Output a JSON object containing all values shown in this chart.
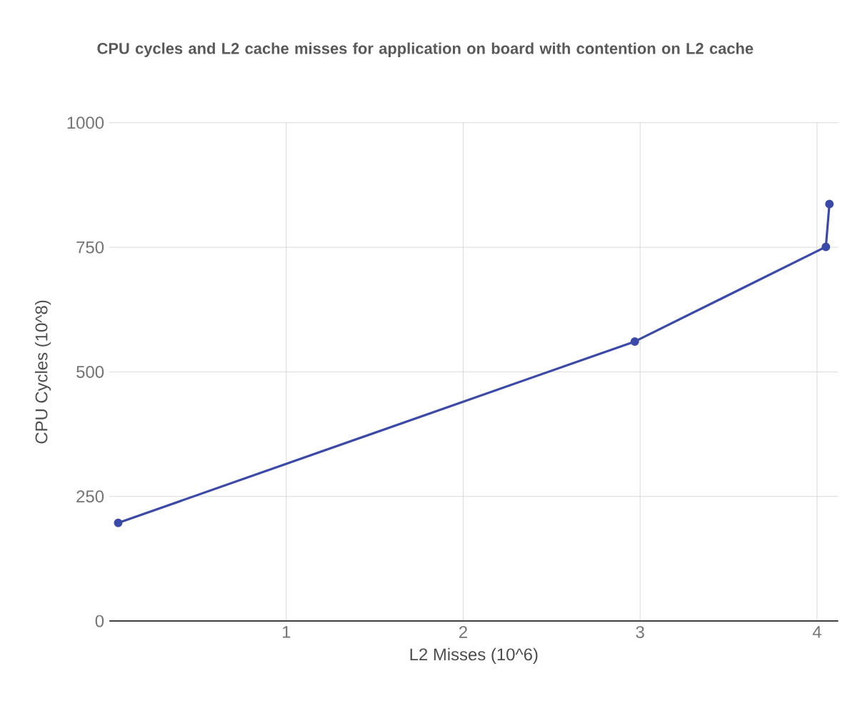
{
  "chart_data": {
    "type": "line",
    "title": "CPU cycles and L2 cache misses for application on board with contention on L2 cache",
    "xlabel": "L2 Misses (10^6)",
    "ylabel": "CPU Cycles (10^8)",
    "x": [
      0.05,
      2.97,
      4.05,
      4.07
    ],
    "series": [
      {
        "color": "#3b4aa8",
        "values": [
          197,
          561,
          751,
          837
        ]
      }
    ],
    "xlim": [
      0,
      4.12
    ],
    "xticks": [
      1,
      2,
      3,
      4
    ],
    "ylim": [
      0,
      1000
    ],
    "yticks": [
      0,
      250,
      500,
      750,
      1000
    ],
    "grid": true,
    "marker": "circle",
    "line_style": "solid"
  }
}
